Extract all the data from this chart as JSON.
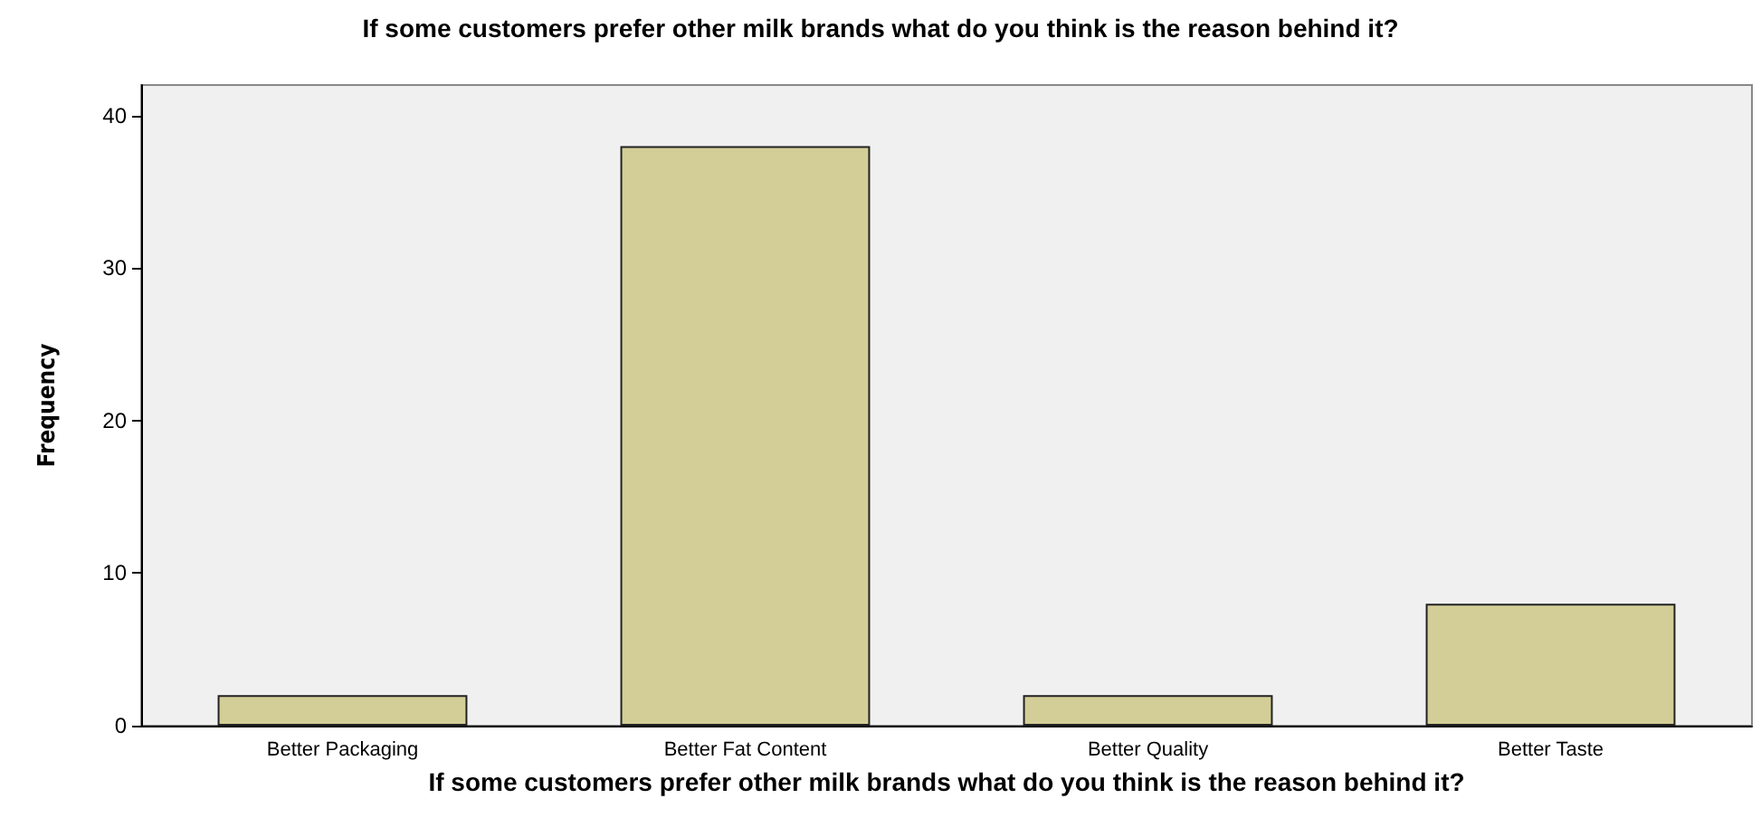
{
  "chart_data": {
    "type": "bar",
    "title": "If some customers prefer other milk brands what do you think is the reason behind it?",
    "xlabel": "If some customers prefer other milk brands what do you think is the reason behind it?",
    "ylabel": "Frequency",
    "categories": [
      "Better Packaging",
      "Better Fat Content",
      "Better Quality",
      "Better Taste"
    ],
    "values": [
      2,
      38,
      2,
      8
    ],
    "color": "#d3ce97",
    "ylim": [
      0,
      42
    ],
    "yticks": [
      0,
      10,
      20,
      30,
      40
    ],
    "grid": false
  }
}
